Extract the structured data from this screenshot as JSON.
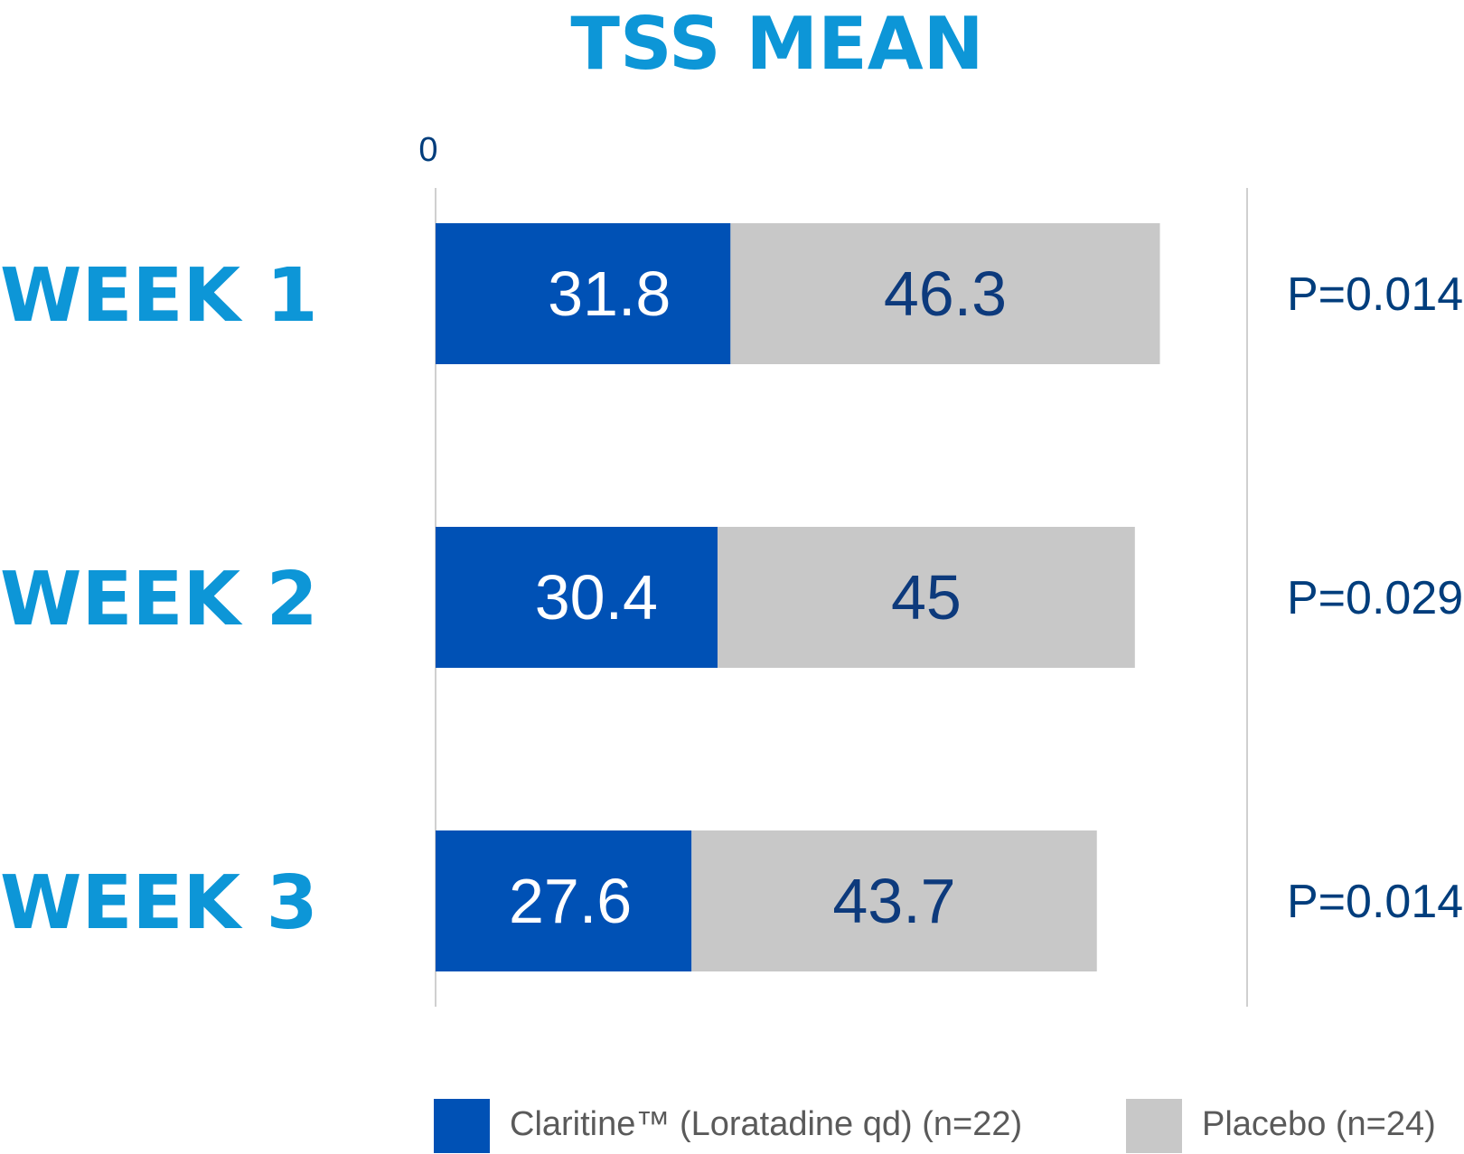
{
  "chart_data": {
    "type": "bar",
    "orientation": "horizontal",
    "stacked": true,
    "title": "TSS MEAN",
    "categories": [
      "WEEK 1",
      "WEEK 2",
      "WEEK 3"
    ],
    "series": [
      {
        "name": "Claritine™ (Loratadine qd) (n=22)",
        "values": [
          31.8,
          30.4,
          27.6
        ],
        "color": "#0051b5"
      },
      {
        "name": "Placebo (n=24)",
        "values": [
          46.3,
          45,
          43.7
        ],
        "color": "#c8c8c8"
      }
    ],
    "value_labels": [
      [
        "31.8",
        "30.4",
        "27.6"
      ],
      [
        "46.3",
        "45",
        "43.7"
      ]
    ],
    "annotations": [
      "P=0.014",
      "P=0.029",
      "P=0.014"
    ],
    "x_tick_labels": [
      "0"
    ],
    "xlim": [
      0,
      87.5
    ],
    "legend_position": "bottom",
    "grid": false,
    "colors": {
      "title": "#0d96d7",
      "category": "#0d96d7",
      "annotation": "#003d7c",
      "label_on_dark": "#ffffff",
      "label_on_light": "#0d3a7c",
      "legend_text": "#5a5a5a",
      "axis_line": "#d0d0d0"
    }
  }
}
